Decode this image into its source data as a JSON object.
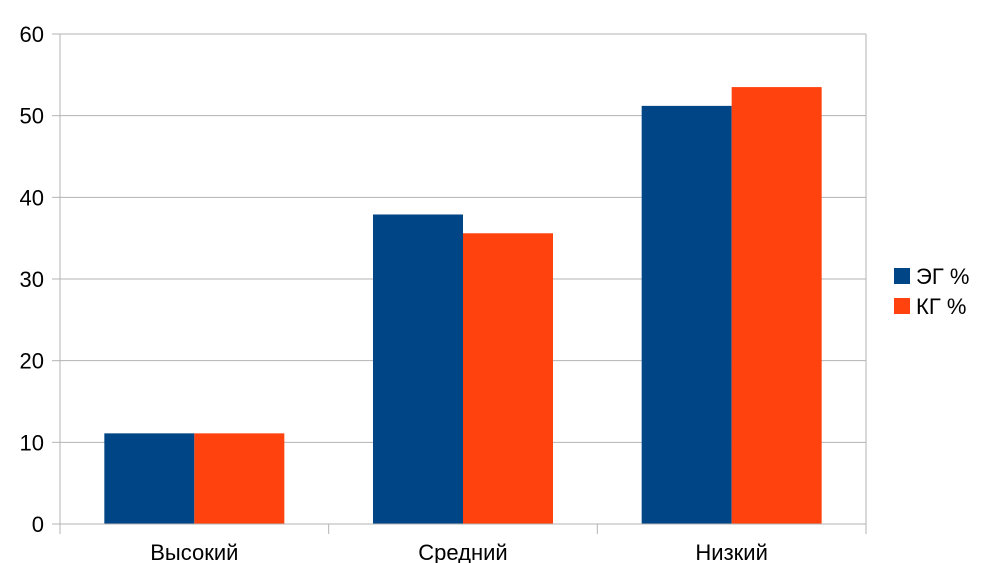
{
  "chart_data": {
    "type": "bar",
    "categories": [
      "Высокий",
      "Средний",
      "Низкий"
    ],
    "series": [
      {
        "name": "ЭГ %",
        "values": [
          11.1,
          37.9,
          51.2
        ],
        "color": "#004586"
      },
      {
        "name": "КГ %",
        "values": [
          11.1,
          35.6,
          53.5
        ],
        "color": "#ff420e"
      }
    ],
    "ylim": [
      0,
      60
    ],
    "yticks": [
      "0",
      "10",
      "20",
      "30",
      "40",
      "50",
      "60"
    ],
    "grid": true,
    "legend_position": "right"
  }
}
